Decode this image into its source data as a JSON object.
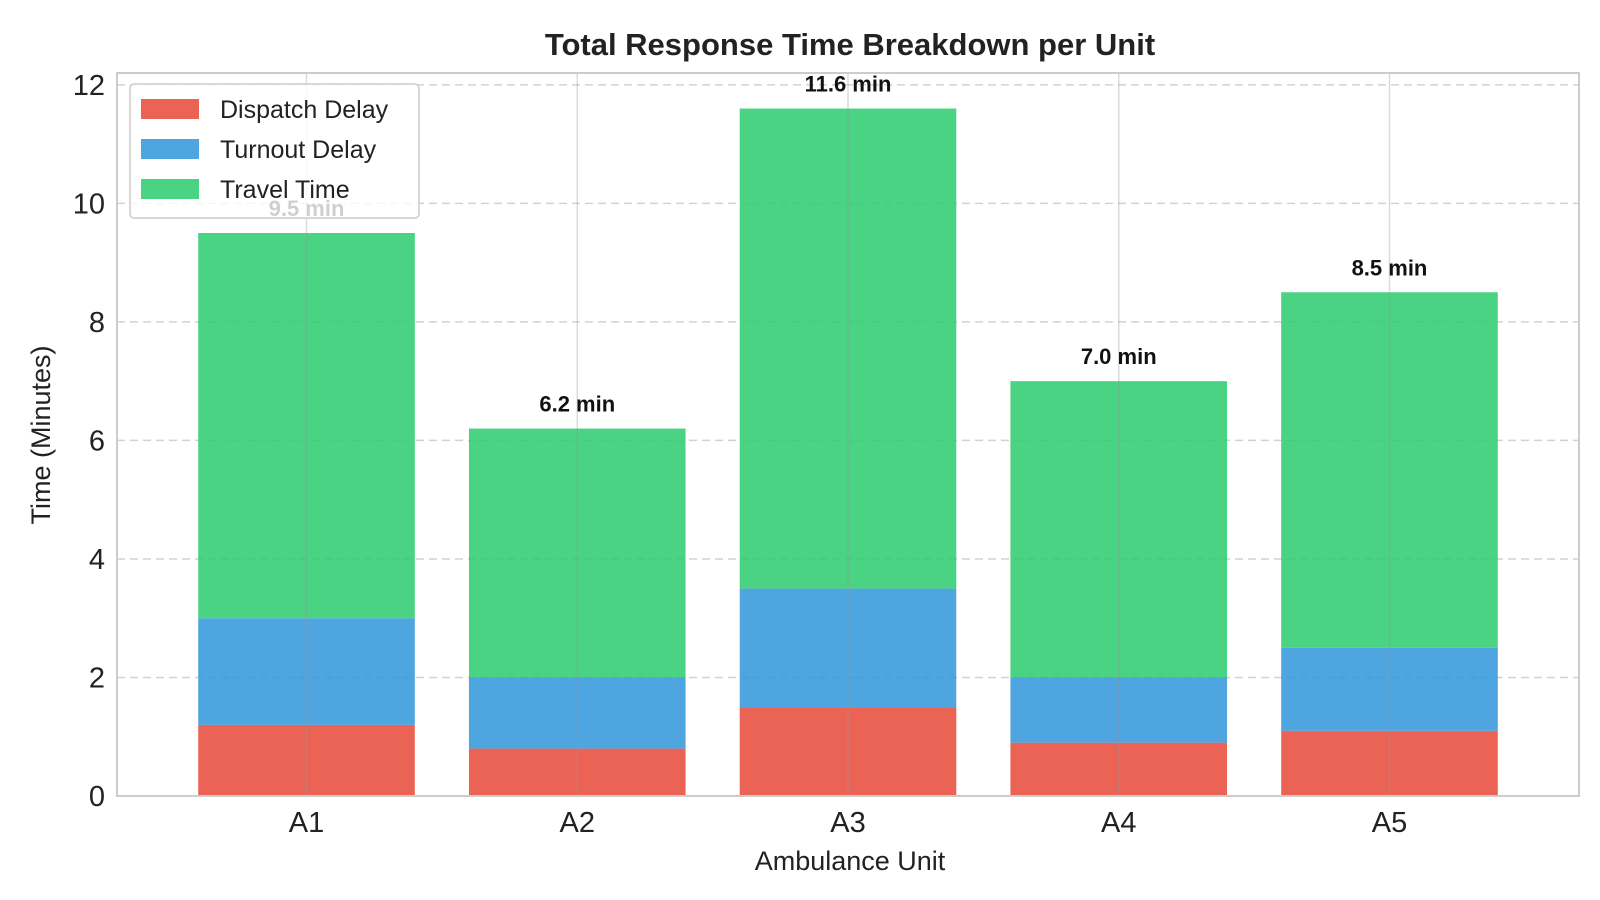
{
  "chart_data": {
    "type": "bar",
    "stacked": true,
    "title": "Total Response Time Breakdown per Unit",
    "xlabel": "Ambulance Unit",
    "ylabel": "Time (Minutes)",
    "categories": [
      "A1",
      "A2",
      "A3",
      "A4",
      "A5"
    ],
    "ylim": [
      0,
      12.2
    ],
    "yticks": [
      0,
      2,
      4,
      6,
      8,
      10,
      12
    ],
    "series": [
      {
        "name": "Dispatch Delay",
        "color": "#e74c3c",
        "values": [
          1.2,
          0.8,
          1.5,
          0.9,
          1.1
        ]
      },
      {
        "name": "Turnout Delay",
        "color": "#3498db",
        "values": [
          1.8,
          1.2,
          2.0,
          1.1,
          1.4
        ]
      },
      {
        "name": "Travel Time",
        "color": "#2ecc71",
        "values": [
          6.5,
          4.2,
          8.1,
          5.0,
          6.0
        ]
      }
    ],
    "totals_labels": [
      "9.5 min",
      "6.2 min",
      "11.6 min",
      "7.0 min",
      "8.5 min"
    ],
    "grid": true,
    "legend_position": "top-left"
  }
}
